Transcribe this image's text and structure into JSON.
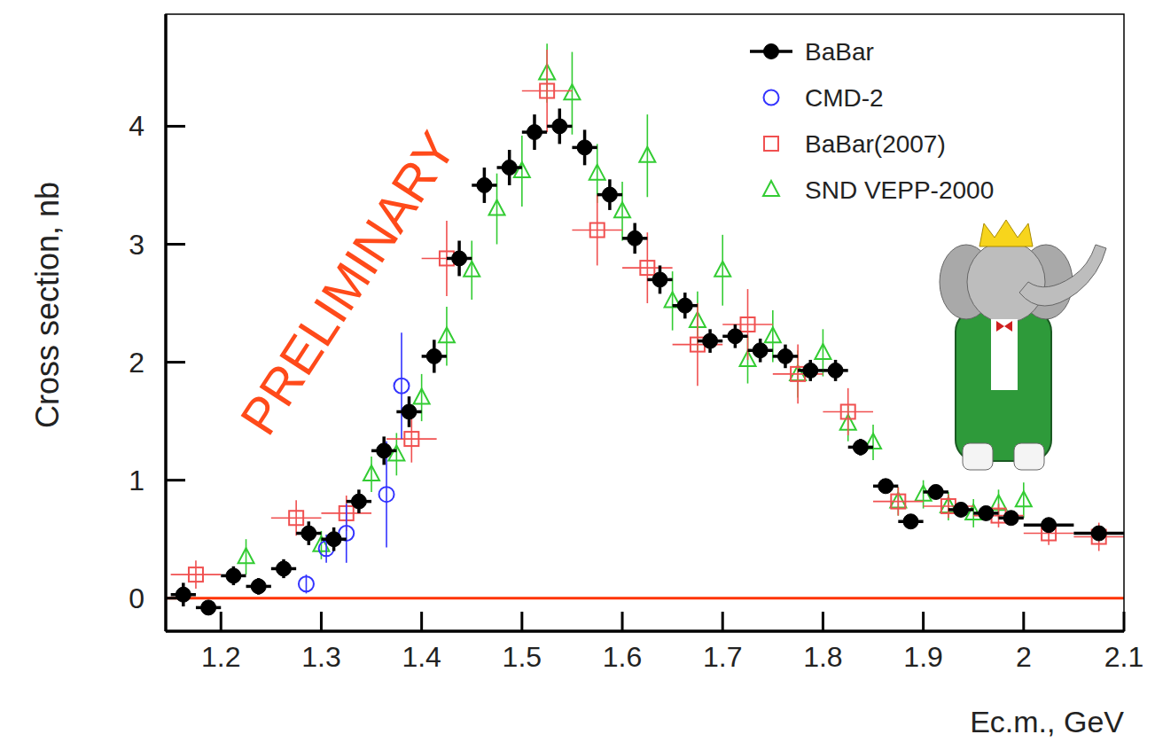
{
  "chart_data": {
    "type": "scatter",
    "y_label": "Cross section, nb",
    "x_label": "Ec.m., GeV",
    "xlim": [
      1.145,
      2.1
    ],
    "ylim": [
      -0.28,
      4.95
    ],
    "xticks": [
      1.2,
      1.3,
      1.4,
      1.5,
      1.6,
      1.7,
      1.8,
      1.9,
      2,
      2.1
    ],
    "yticks": [
      0,
      1,
      2,
      3,
      4
    ],
    "grid": false,
    "legend": "upper right",
    "reference_lines": [
      {
        "value": 0,
        "color": "#ff3300"
      }
    ],
    "annotations": [
      {
        "text": "PRELIMINARY",
        "x": 1.33,
        "y": 2.65,
        "color": "#ff4a1a"
      }
    ],
    "series": [
      {
        "name": "BaBar",
        "color": "#000000",
        "marker": "filled-circle",
        "x": [
          1.1625,
          1.1875,
          1.2125,
          1.2375,
          1.2625,
          1.2875,
          1.3125,
          1.3375,
          1.3625,
          1.3875,
          1.4125,
          1.4375,
          1.4625,
          1.4875,
          1.5125,
          1.5375,
          1.5625,
          1.5875,
          1.6125,
          1.6375,
          1.6625,
          1.6875,
          1.7125,
          1.7375,
          1.7625,
          1.7875,
          1.8125,
          1.8375,
          1.8625,
          1.8875,
          1.9125,
          1.9375,
          1.9625,
          1.9875,
          2.025,
          2.075
        ],
        "values": [
          0.03,
          -0.08,
          0.19,
          0.1,
          0.25,
          0.55,
          0.5,
          0.82,
          1.25,
          1.58,
          2.05,
          2.88,
          3.5,
          3.65,
          3.95,
          4.0,
          3.82,
          3.42,
          3.05,
          2.7,
          2.48,
          2.18,
          2.22,
          2.1,
          2.05,
          1.93,
          1.93,
          1.28,
          0.95,
          0.65,
          0.9,
          0.75,
          0.72,
          0.68,
          0.62,
          0.55
        ],
        "errors": [
          0.1,
          0.06,
          0.08,
          0.07,
          0.08,
          0.1,
          0.1,
          0.1,
          0.12,
          0.13,
          0.14,
          0.15,
          0.15,
          0.15,
          0.15,
          0.15,
          0.15,
          0.13,
          0.13,
          0.12,
          0.11,
          0.1,
          0.1,
          0.1,
          0.1,
          0.09,
          0.09,
          0.07,
          0.06,
          0.05,
          0.05,
          0.05,
          0.05,
          0.05,
          0.03,
          0.03
        ],
        "x_errors": [
          0.0125,
          0.0125,
          0.0125,
          0.0125,
          0.0125,
          0.0125,
          0.0125,
          0.0125,
          0.0125,
          0.0125,
          0.0125,
          0.0125,
          0.0125,
          0.0125,
          0.0125,
          0.0125,
          0.0125,
          0.0125,
          0.0125,
          0.0125,
          0.0125,
          0.0125,
          0.0125,
          0.0125,
          0.0125,
          0.0125,
          0.0125,
          0.0125,
          0.0125,
          0.0125,
          0.0125,
          0.0125,
          0.0125,
          0.0125,
          0.025,
          0.025
        ]
      },
      {
        "name": "CMD-2",
        "color": "#3333ff",
        "marker": "open-circle",
        "x": [
          1.285,
          1.305,
          1.325,
          1.365,
          1.38
        ],
        "values": [
          0.12,
          0.42,
          0.55,
          0.88,
          1.8
        ],
        "errors": [
          0.08,
          0.12,
          0.25,
          0.45,
          0.45
        ],
        "x_errors": [
          0,
          0,
          0,
          0,
          0
        ]
      },
      {
        "name": "BaBar(2007)",
        "color": "#f05050",
        "marker": "open-square",
        "x": [
          1.175,
          1.275,
          1.325,
          1.39,
          1.425,
          1.525,
          1.575,
          1.625,
          1.675,
          1.725,
          1.775,
          1.825,
          1.875,
          1.925,
          1.975,
          2.025,
          2.075
        ],
        "values": [
          0.2,
          0.68,
          0.72,
          1.35,
          2.88,
          4.3,
          3.12,
          2.8,
          2.15,
          2.32,
          1.9,
          1.58,
          0.82,
          0.78,
          0.7,
          0.55,
          0.52
        ],
        "errors": [
          0.12,
          0.15,
          0.15,
          0.2,
          0.32,
          0.35,
          0.3,
          0.3,
          0.35,
          0.3,
          0.25,
          0.2,
          0.12,
          0.1,
          0.1,
          0.1,
          0.12
        ],
        "x_errors": [
          0.025,
          0.025,
          0.025,
          0.025,
          0.025,
          0.025,
          0.025,
          0.025,
          0.025,
          0.025,
          0.025,
          0.025,
          0.025,
          0.025,
          0.025,
          0.025,
          0.025
        ]
      },
      {
        "name": "SND VEPP-2000",
        "color": "#33cc33",
        "marker": "open-triangle",
        "x": [
          1.225,
          1.3,
          1.35,
          1.375,
          1.4,
          1.425,
          1.45,
          1.475,
          1.5,
          1.525,
          1.55,
          1.575,
          1.6,
          1.625,
          1.65,
          1.675,
          1.7,
          1.725,
          1.75,
          1.775,
          1.8,
          1.825,
          1.85,
          1.875,
          1.9,
          1.925,
          1.95,
          1.975,
          2.0
        ],
        "values": [
          0.35,
          0.45,
          1.05,
          1.22,
          1.7,
          2.22,
          2.78,
          3.3,
          3.62,
          4.45,
          4.28,
          3.6,
          3.28,
          3.75,
          2.52,
          2.35,
          2.78,
          2.02,
          2.22,
          1.9,
          2.08,
          1.48,
          1.32,
          0.82,
          0.88,
          0.78,
          0.72,
          0.8,
          0.83
        ],
        "errors": [
          0.15,
          0.12,
          0.15,
          0.18,
          0.2,
          0.25,
          0.25,
          0.3,
          0.3,
          0.25,
          0.35,
          0.25,
          0.25,
          0.35,
          0.25,
          0.25,
          0.3,
          0.2,
          0.22,
          0.2,
          0.2,
          0.15,
          0.15,
          0.12,
          0.12,
          0.12,
          0.12,
          0.12,
          0.15
        ],
        "x_errors": [
          0,
          0,
          0,
          0,
          0,
          0,
          0,
          0,
          0,
          0,
          0,
          0,
          0,
          0,
          0,
          0,
          0,
          0,
          0,
          0,
          0,
          0,
          0,
          0,
          0,
          0,
          0,
          0,
          0
        ]
      }
    ]
  }
}
